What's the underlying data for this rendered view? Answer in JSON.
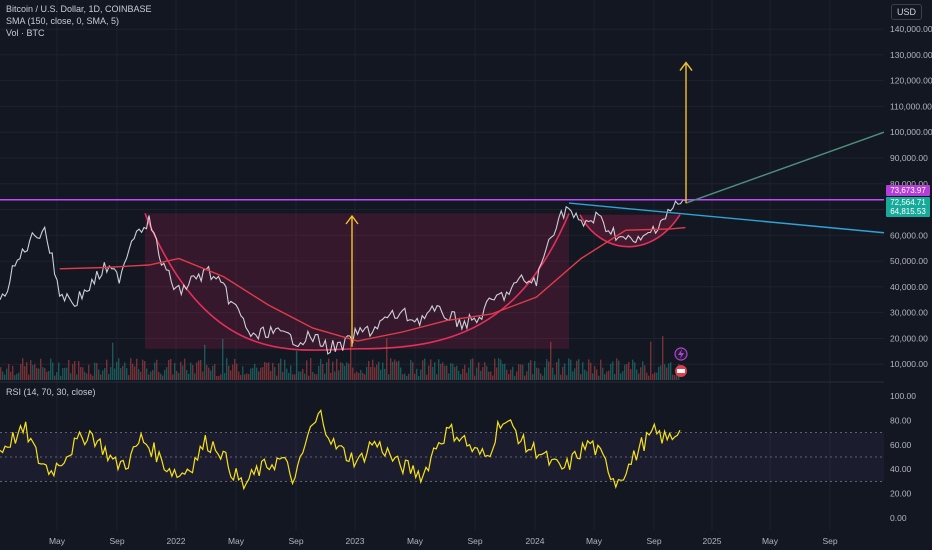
{
  "header": {
    "title": "Bitcoin / U.S. Dollar, 1D, COINBASE",
    "sma_legend": "SMA (150, close, 0, SMA, 5)",
    "vol_legend": "Vol · BTC",
    "currency_button": "USD"
  },
  "rsi_panel": {
    "legend": "RSI (14, 70, 30, close)"
  },
  "price_tags": [
    {
      "label": "73,673.97",
      "color": "#b53ed8"
    },
    {
      "label": "72,564.71",
      "color": "#17a99a"
    },
    {
      "label": "64,815.53",
      "color": "#17a99a"
    }
  ],
  "chart_data": [
    {
      "type": "line",
      "title": "Bitcoin / U.S. Dollar, 1D, COINBASE",
      "ylim": [
        0,
        145000
      ],
      "y_ticks": [
        "10,000.00",
        "20,000.00",
        "30,000.00",
        "40,000.00",
        "50,000.00",
        "60,000.00",
        "70,000.00",
        "80,000.00",
        "90,000.00",
        "100,000.00",
        "110,000.00",
        "120,000.00",
        "130,000.00",
        "140,000.00"
      ],
      "x_ticks": [
        "May",
        "Sep",
        "2022",
        "May",
        "Sep",
        "2023",
        "May",
        "Sep",
        "2024",
        "May",
        "Sep",
        "2025",
        "May",
        "Sep"
      ],
      "series": [
        {
          "name": "BTC",
          "color": "#e0e3ea",
          "x": [
            "2021-01",
            "2021-02",
            "2021-03",
            "2021-04",
            "2021-05",
            "2021-06",
            "2021-07",
            "2021-08",
            "2021-09",
            "2021-10",
            "2021-11",
            "2021-12",
            "2022-01",
            "2022-02",
            "2022-03",
            "2022-04",
            "2022-05",
            "2022-06",
            "2022-07",
            "2022-08",
            "2022-09",
            "2022-10",
            "2022-11",
            "2022-12",
            "2023-01",
            "2023-02",
            "2023-03",
            "2023-04",
            "2023-05",
            "2023-06",
            "2023-07",
            "2023-08",
            "2023-09",
            "2023-10",
            "2023-11",
            "2023-12",
            "2024-01",
            "2024-02",
            "2024-03",
            "2024-04",
            "2024-05",
            "2024-06",
            "2024-07",
            "2024-08",
            "2024-09",
            "2024-10",
            "2024-11"
          ],
          "values": [
            33000,
            48000,
            58000,
            63000,
            38000,
            34000,
            40000,
            47000,
            44000,
            61000,
            66000,
            47000,
            38000,
            43000,
            46000,
            39000,
            30000,
            20000,
            23000,
            21000,
            19500,
            20500,
            16500,
            16800,
            22000,
            23500,
            28000,
            29500,
            27000,
            30500,
            29300,
            26000,
            27000,
            34500,
            37500,
            42500,
            42000,
            61000,
            71000,
            64000,
            67000,
            62000,
            58000,
            57500,
            63500,
            70000,
            73500
          ]
        },
        {
          "name": "SMA (150, close, 0, SMA, 5)",
          "color": "#e23b4b",
          "x": [
            "2021-05",
            "2021-08",
            "2021-11",
            "2022-01",
            "2022-04",
            "2022-07",
            "2022-10",
            "2023-01",
            "2023-04",
            "2023-07",
            "2023-10",
            "2024-01",
            "2024-04",
            "2024-07",
            "2024-10",
            "2024-11"
          ],
          "values": [
            47000,
            47500,
            48500,
            51000,
            44000,
            33000,
            24000,
            19000,
            22500,
            27000,
            29500,
            36000,
            51000,
            62000,
            62500,
            63000
          ]
        }
      ],
      "annotations": {
        "resistance_line": 73800,
        "cup_rim": 68500,
        "cup_low": 16000,
        "target_arrow_top": 127000,
        "small_arrow_top": 67500,
        "trend_up_end": 100000,
        "trend_down_end": 61000
      }
    },
    {
      "type": "line",
      "title": "RSI (14, 70, 30, close)",
      "ylim": [
        0,
        100
      ],
      "y_ticks": [
        "0.00",
        "20.00",
        "40.00",
        "60.00",
        "80.00",
        "100.00"
      ],
      "bands": [
        30,
        50,
        70
      ],
      "series": [
        {
          "name": "RSI",
          "color": "#f6e21a",
          "values": [
            55,
            65,
            72,
            48,
            38,
            50,
            62,
            70,
            58,
            44,
            46,
            65,
            55,
            42,
            35,
            44,
            62,
            58,
            40,
            26,
            38,
            44,
            48,
            30,
            68,
            85,
            60,
            52,
            46,
            62,
            56,
            44,
            40,
            35,
            60,
            72,
            66,
            54,
            50,
            80,
            74,
            58,
            55,
            44,
            40,
            52,
            62,
            48,
            30,
            42,
            60,
            70,
            64,
            72
          ]
        }
      ]
    }
  ]
}
